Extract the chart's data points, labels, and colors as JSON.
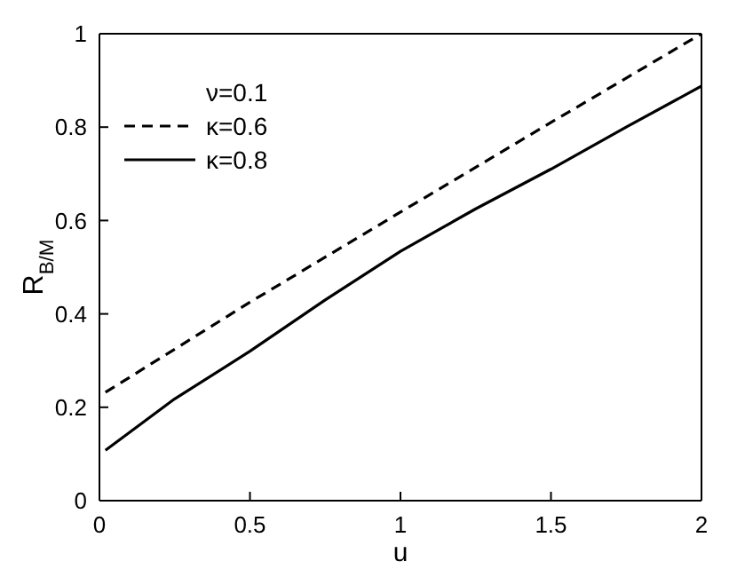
{
  "chart_data": {
    "type": "line",
    "xlabel": "u",
    "ylabel": "R$_{B/M}$",
    "legend_title": "ν=0.1",
    "legend": "top left",
    "xlim": [
      0,
      2
    ],
    "ylim": [
      0,
      1
    ],
    "xticks": [
      0,
      0.5,
      1,
      1.5,
      2
    ],
    "yticks": [
      0,
      0.2,
      0.4,
      0.6,
      0.8,
      1
    ],
    "grid": false,
    "marker": "none",
    "series": [
      {
        "name": "κ=0.6",
        "color": "#000000",
        "line_style": "dashed",
        "x": [
          0.02,
          0.5,
          1,
          1.5,
          2
        ],
        "values": [
          0.232,
          0.425,
          0.618,
          0.81,
          1.0
        ]
      },
      {
        "name": "κ=0.8",
        "color": "#000000",
        "line_style": "solid",
        "x": [
          0.02,
          0.25,
          0.5,
          0.75,
          1,
          1.25,
          1.5,
          1.75,
          2
        ],
        "values": [
          0.108,
          0.218,
          0.32,
          0.43,
          0.534,
          0.625,
          0.71,
          0.8,
          0.888
        ]
      }
    ]
  }
}
